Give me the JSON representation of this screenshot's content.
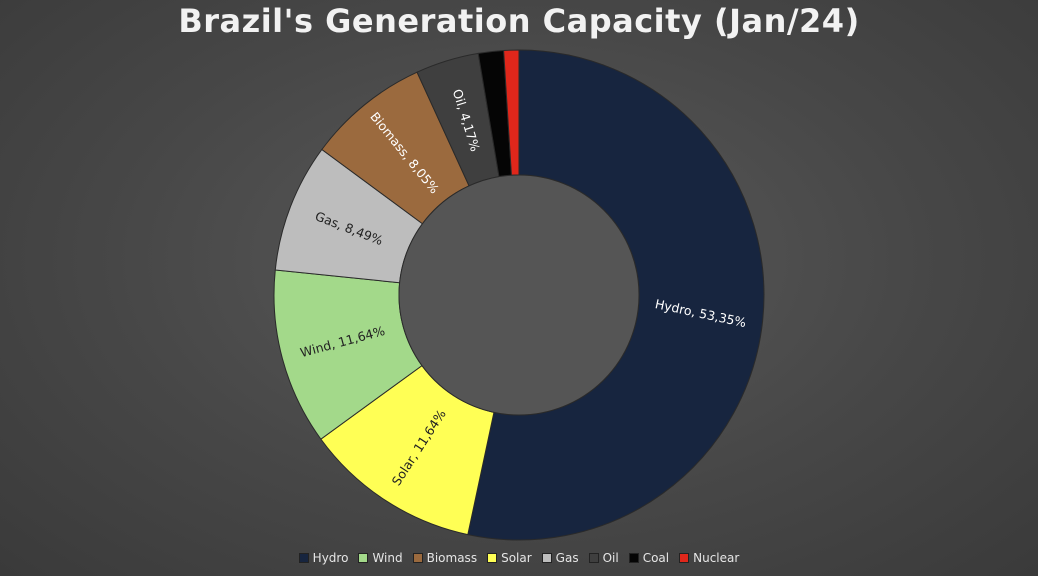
{
  "chart_data": {
    "type": "pie",
    "style": "donut",
    "title": "Brazil's Generation Capacity (Jan/24)",
    "legend_position": "bottom",
    "series": [
      {
        "name": "Hydro",
        "value": 53.35,
        "label": "Hydro, 53,35%",
        "color": "#17253f",
        "label_color": "#ffffff"
      },
      {
        "name": "Solar",
        "value": 11.64,
        "label": "Solar, 11,64%",
        "color": "#ffff55",
        "label_color": "#222222"
      },
      {
        "name": "Wind",
        "value": 11.64,
        "label": "Wind, 11,64%",
        "color": "#a3d98a",
        "label_color": "#222222"
      },
      {
        "name": "Gas",
        "value": 8.49,
        "label": "Gas, 8,49%",
        "color": "#bdbdbd",
        "label_color": "#222222"
      },
      {
        "name": "Biomass",
        "value": 8.05,
        "label": "Biomass, 8,05%",
        "color": "#9b6a3e",
        "label_color": "#ffffff"
      },
      {
        "name": "Oil",
        "value": 4.17,
        "label": "Oil, 4,17%",
        "color": "#3f3f3f",
        "label_color": "#ffffff"
      },
      {
        "name": "Coal",
        "value": 1.66,
        "label": "",
        "color": "#050505",
        "label_color": "#ffffff"
      },
      {
        "name": "Nuclear",
        "value": 1.0,
        "label": "",
        "color": "#e0271b",
        "label_color": "#ffffff"
      }
    ],
    "legend_order": [
      "Hydro",
      "Wind",
      "Biomass",
      "Solar",
      "Gas",
      "Oil",
      "Coal",
      "Nuclear"
    ],
    "hole_color": "#555555"
  }
}
